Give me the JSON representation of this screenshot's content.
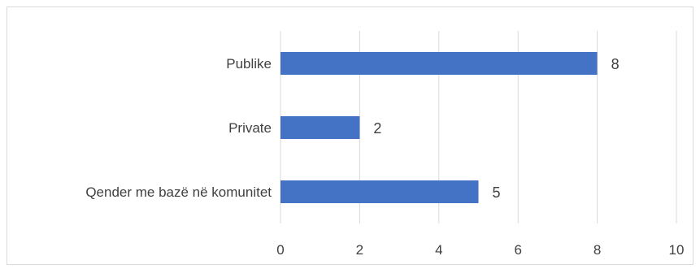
{
  "chart_data": {
    "type": "bar",
    "orientation": "horizontal",
    "categories": [
      "Publike",
      "Private",
      "Qender me bazë në komunitet"
    ],
    "values": [
      8,
      2,
      5
    ],
    "xlim": [
      0,
      10
    ],
    "xticks": [
      0,
      2,
      4,
      6,
      8,
      10
    ],
    "grid": true,
    "legend": "none",
    "bar_color": "#4472C4",
    "grid_color": "#d9d9d9",
    "data_labels": true
  }
}
